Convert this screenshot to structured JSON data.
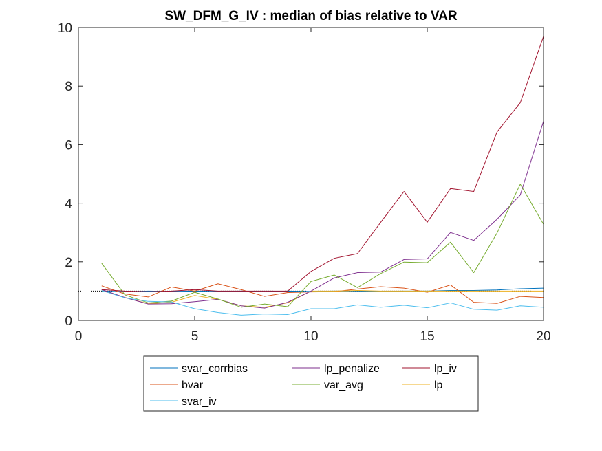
{
  "chart_data": {
    "type": "line",
    "title": "SW_DFM_G_IV : median of bias relative to VAR",
    "xlabel": "",
    "ylabel": "",
    "xlim": [
      0,
      20
    ],
    "ylim": [
      0,
      10
    ],
    "xticks": [
      0,
      5,
      10,
      15,
      20
    ],
    "yticks": [
      0,
      2,
      4,
      6,
      8,
      10
    ],
    "grid": false,
    "legend_position": "bottom-outside",
    "x": [
      1,
      2,
      3,
      4,
      5,
      6,
      7,
      8,
      9,
      10,
      11,
      12,
      13,
      14,
      15,
      16,
      17,
      18,
      19,
      20
    ],
    "reference_line": {
      "y": 1,
      "style": "dotted",
      "color": "#000000"
    },
    "series": [
      {
        "name": "svar_corrbias",
        "color": "#0072BD",
        "values": [
          1.0,
          0.98,
          1.0,
          0.99,
          1.0,
          0.99,
          1.0,
          0.98,
          1.0,
          0.99,
          1.0,
          1.0,
          0.99,
          1.0,
          1.0,
          1.02,
          1.02,
          1.04,
          1.08,
          1.1
        ]
      },
      {
        "name": "bvar",
        "color": "#D95319",
        "values": [
          1.18,
          0.9,
          0.8,
          1.14,
          1.0,
          1.25,
          1.05,
          0.82,
          0.95,
          0.97,
          0.98,
          1.07,
          1.15,
          1.1,
          0.96,
          1.21,
          0.62,
          0.58,
          0.82,
          0.78
        ]
      },
      {
        "name": "lp",
        "color": "#EDB120",
        "values": [
          1.02,
          0.78,
          0.57,
          0.62,
          0.85,
          0.72,
          0.5,
          0.45,
          0.6,
          1.0,
          1.0,
          1.02,
          1.0,
          1.0,
          1.0,
          1.0,
          1.0,
          1.0,
          1.0,
          1.0
        ]
      },
      {
        "name": "lp_penalize",
        "color": "#7E2F8E",
        "values": [
          1.05,
          0.78,
          0.56,
          0.57,
          0.64,
          0.72,
          0.5,
          0.42,
          0.62,
          1.0,
          1.45,
          1.63,
          1.65,
          2.08,
          2.1,
          3.0,
          2.73,
          3.45,
          4.28,
          6.8
        ]
      },
      {
        "name": "var_avg",
        "color": "#77AC30",
        "values": [
          1.95,
          0.87,
          0.6,
          0.66,
          0.96,
          0.73,
          0.45,
          0.56,
          0.47,
          1.33,
          1.55,
          1.12,
          1.6,
          1.99,
          1.97,
          2.67,
          1.63,
          2.98,
          4.65,
          3.28
        ]
      },
      {
        "name": "svar_iv",
        "color": "#4DBEEE",
        "values": [
          1.02,
          0.77,
          0.65,
          0.63,
          0.4,
          0.27,
          0.18,
          0.22,
          0.2,
          0.4,
          0.4,
          0.53,
          0.45,
          0.52,
          0.43,
          0.6,
          0.38,
          0.35,
          0.5,
          0.45
        ]
      },
      {
        "name": "lp_iv",
        "color": "#A2142F",
        "values": [
          1.05,
          1.0,
          0.98,
          1.0,
          1.05,
          1.0,
          1.0,
          1.0,
          1.0,
          1.67,
          2.12,
          2.28,
          3.35,
          4.4,
          3.35,
          4.5,
          4.4,
          6.43,
          7.43,
          9.7
        ]
      }
    ],
    "legend_order": [
      "svar_corrbias",
      "lp_penalize",
      "lp_iv",
      "bvar",
      "var_avg",
      "lp",
      "svar_iv"
    ]
  }
}
